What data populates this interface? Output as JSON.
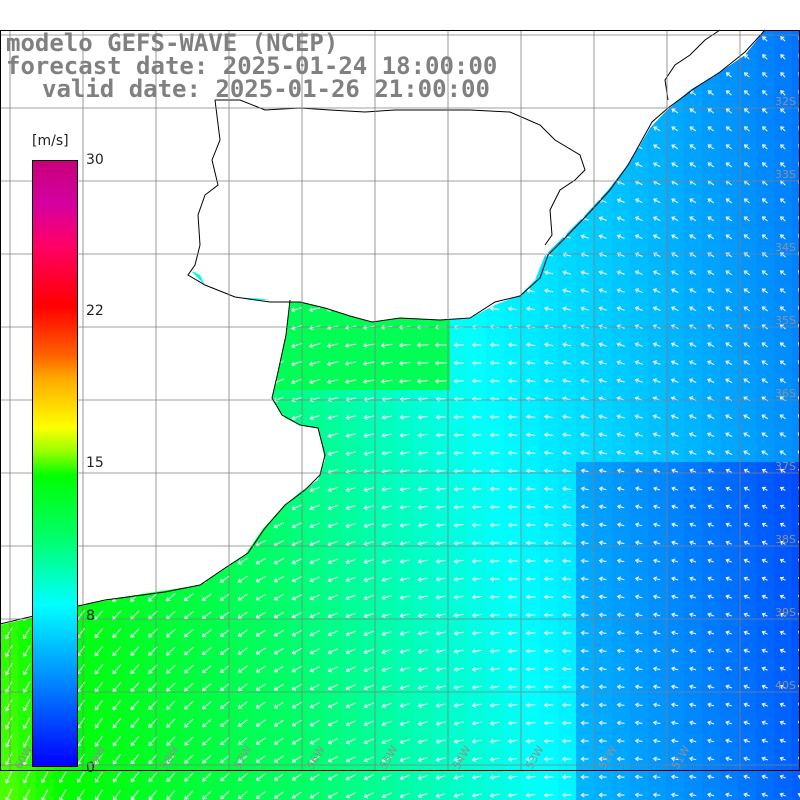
{
  "title": {
    "line1": "modelo GEFS-WAVE (NCEP)",
    "line2": "forecast date: 2025-01-24 18:00:00",
    "line3": "valid date: 2025-01-26 21:00:00"
  },
  "colorbar": {
    "unit": "[m/s]",
    "ticks": [
      "30",
      "22",
      "15",
      "8",
      "0"
    ],
    "tick_values": [
      30,
      22,
      15,
      8,
      0
    ],
    "min": 0,
    "max": 30
  },
  "map": {
    "lat_labels": [
      "32S",
      "33S",
      "34S",
      "35S",
      "36S",
      "37S",
      "38S",
      "39S",
      "40S"
    ],
    "lon_labels": [
      "60W",
      "59W",
      "58W",
      "57W",
      "56W",
      "55W",
      "54W",
      "53W",
      "52W",
      "51W"
    ],
    "colors": {
      "land": "#ffffff",
      "coast": "#000000",
      "grid": "#808080",
      "arrow": "#ffffff"
    }
  }
}
